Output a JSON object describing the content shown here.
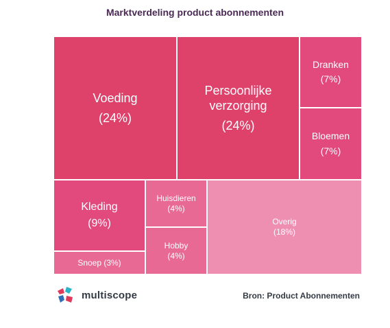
{
  "header": {
    "title": "Marktverdeling product abonnementen"
  },
  "chart_data": {
    "type": "treemap",
    "title": "Marktverdeling product abonnementen",
    "items": [
      {
        "label": "Voeding",
        "percent_label": "(24%)",
        "value": 24,
        "color": "#de416a"
      },
      {
        "label": "Persoonlijke verzorging",
        "percent_label": "(24%)",
        "value": 24,
        "color": "#de416a"
      },
      {
        "label": "Dranken",
        "percent_label": "(7%)",
        "value": 7,
        "color": "#e24a7d"
      },
      {
        "label": "Bloemen",
        "percent_label": "(7%)",
        "value": 7,
        "color": "#e24a7d"
      },
      {
        "label": "Kleding",
        "percent_label": "(9%)",
        "value": 9,
        "color": "#e24a7d"
      },
      {
        "label": "Snoep (3%)",
        "percent_label": "",
        "value": 3,
        "color": "#e86a94"
      },
      {
        "label": "Huisdieren",
        "percent_label": "(4%)",
        "value": 4,
        "color": "#e86a94"
      },
      {
        "label": "Hobby",
        "percent_label": "(4%)",
        "value": 4,
        "color": "#e86a94"
      },
      {
        "label": "Overig",
        "percent_label": "(18%)",
        "value": 18,
        "color": "#ee8fb2"
      }
    ]
  },
  "footer": {
    "logo_text": "multiscope",
    "source": "Bron: Product Abonnementen"
  }
}
